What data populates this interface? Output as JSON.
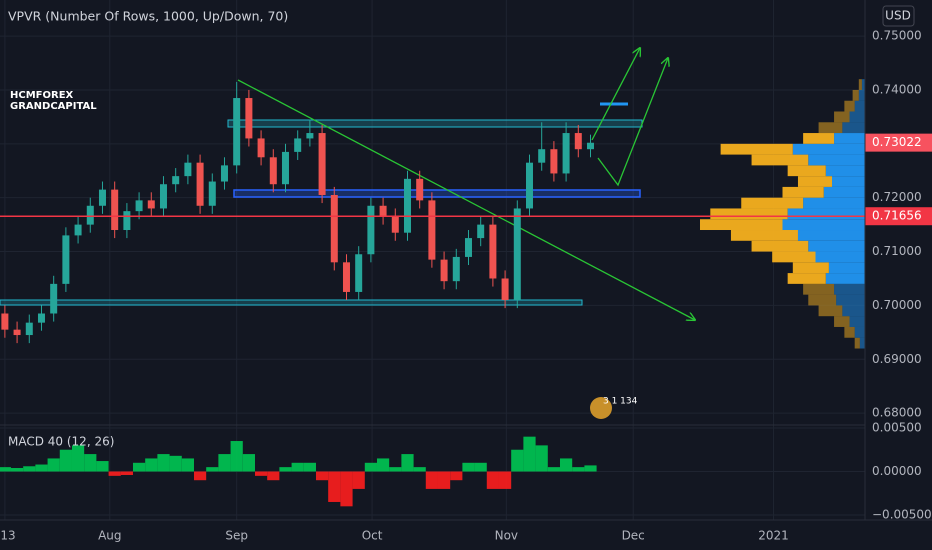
{
  "chart_data": [
    {
      "type": "candlestick",
      "title": "VPVR (Number Of Rows, 1000, Up/Down, 70)",
      "watermark": [
        "HCMFOREX",
        "GRANDCAPITAL"
      ],
      "currency": "USD",
      "badge": "3 1 134",
      "xlim": [
        -0.4,
        70.5
      ],
      "xticks": [
        {
          "value": 0,
          "label": "13"
        },
        {
          "value": 8.6,
          "label": "Aug"
        },
        {
          "value": 19,
          "label": "Sep"
        },
        {
          "value": 30.1,
          "label": "Oct"
        },
        {
          "value": 41.1,
          "label": "Nov"
        },
        {
          "value": 51.5,
          "label": "Dec"
        },
        {
          "value": 63,
          "label": "2021"
        }
      ],
      "ylim": [
        0.6778,
        0.7567
      ],
      "yticks": [
        {
          "value": 0.75,
          "label": "0.75000"
        },
        {
          "value": 0.74,
          "label": "0.74000"
        },
        {
          "value": 0.73,
          "label": "0.73000"
        },
        {
          "value": 0.72,
          "label": "0.72000"
        },
        {
          "value": 0.71,
          "label": "0.71000"
        },
        {
          "value": 0.7,
          "label": "0.70000"
        },
        {
          "value": 0.69,
          "label": "0.69000"
        },
        {
          "value": 0.68,
          "label": "0.68000"
        }
      ],
      "grid": true,
      "up_color": "#26a69a",
      "down_color": "#ef5350",
      "open": [
        0.6985,
        0.6955,
        0.6945,
        0.6968,
        0.6985,
        0.704,
        0.713,
        0.715,
        0.7185,
        0.7215,
        0.714,
        0.7175,
        0.7195,
        0.718,
        0.7225,
        0.724,
        0.7265,
        0.7185,
        0.723,
        0.726,
        0.7385,
        0.731,
        0.7275,
        0.7225,
        0.7285,
        0.731,
        0.732,
        0.7205,
        0.708,
        0.7025,
        0.7095,
        0.7185,
        0.7165,
        0.7135,
        0.7235,
        0.7195,
        0.7085,
        0.7045,
        0.709,
        0.7125,
        0.715,
        0.705,
        0.701,
        0.718,
        0.7265,
        0.729,
        0.7245,
        0.732,
        0.729
      ],
      "high": [
        0.7,
        0.697,
        0.6983,
        0.7,
        0.7055,
        0.7145,
        0.7165,
        0.72,
        0.723,
        0.723,
        0.719,
        0.721,
        0.721,
        0.724,
        0.7255,
        0.728,
        0.728,
        0.7245,
        0.7275,
        0.7415,
        0.74,
        0.7325,
        0.729,
        0.73,
        0.7325,
        0.7345,
        0.7335,
        0.722,
        0.7095,
        0.711,
        0.72,
        0.72,
        0.718,
        0.725,
        0.725,
        0.721,
        0.71,
        0.7105,
        0.714,
        0.7165,
        0.7165,
        0.7065,
        0.7195,
        0.728,
        0.734,
        0.7305,
        0.734,
        0.7335,
        0.7317
      ],
      "low": [
        0.694,
        0.693,
        0.693,
        0.6953,
        0.697,
        0.7025,
        0.7115,
        0.7135,
        0.717,
        0.7125,
        0.7125,
        0.716,
        0.7165,
        0.7165,
        0.721,
        0.7225,
        0.717,
        0.717,
        0.7215,
        0.7245,
        0.7295,
        0.726,
        0.721,
        0.721,
        0.727,
        0.7295,
        0.719,
        0.7065,
        0.701,
        0.701,
        0.708,
        0.715,
        0.712,
        0.712,
        0.718,
        0.707,
        0.703,
        0.703,
        0.7075,
        0.711,
        0.7035,
        0.6995,
        0.6995,
        0.7165,
        0.725,
        0.723,
        0.723,
        0.7275,
        0.7275
      ],
      "close": [
        0.6955,
        0.6945,
        0.6968,
        0.6985,
        0.704,
        0.713,
        0.715,
        0.7185,
        0.7215,
        0.714,
        0.7175,
        0.7195,
        0.718,
        0.7225,
        0.724,
        0.7265,
        0.7185,
        0.723,
        0.726,
        0.7385,
        0.731,
        0.7275,
        0.7225,
        0.7285,
        0.731,
        0.732,
        0.7205,
        0.708,
        0.7025,
        0.7095,
        0.7185,
        0.7165,
        0.7135,
        0.7235,
        0.7195,
        0.7085,
        0.7045,
        0.709,
        0.7125,
        0.715,
        0.705,
        0.701,
        0.718,
        0.7265,
        0.729,
        0.7245,
        0.732,
        0.729,
        0.7302
      ],
      "price_labels": [
        {
          "value": 0.73022,
          "label": "0.73022",
          "color": "#f7525f"
        },
        {
          "value": 0.71656,
          "label": "0.71656",
          "color": "#f23645"
        }
      ],
      "volume_profile": {
        "price": [
          0.693,
          0.695,
          0.697,
          0.699,
          0.701,
          0.703,
          0.705,
          0.707,
          0.709,
          0.711,
          0.713,
          0.715,
          0.717,
          0.719,
          0.721,
          0.723,
          0.725,
          0.727,
          0.729,
          0.731,
          0.733,
          0.735,
          0.737,
          0.739,
          0.741
        ],
        "up": [
          5,
          10,
          15,
          22,
          28,
          30,
          38,
          35,
          48,
          55,
          65,
          80,
          75,
          60,
          40,
          32,
          38,
          55,
          70,
          30,
          22,
          15,
          10,
          6,
          3
        ],
        "down": [
          5,
          10,
          15,
          23,
          27,
          30,
          37,
          35,
          42,
          55,
          65,
          80,
          75,
          60,
          40,
          33,
          37,
          55,
          70,
          30,
          23,
          15,
          10,
          6,
          3
        ],
        "up_color": "#2196f3",
        "down_color": "#f5b01f",
        "value_area": [
          0.705,
          0.731
        ]
      }
    },
    {
      "type": "histogram",
      "title": "MACD 40 (12, 26)",
      "ylim": [
        -0.00557,
        0.00534
      ],
      "yticks": [
        {
          "value": 0.005,
          "label": "0.00500"
        },
        {
          "value": 0,
          "label": "0.00000"
        },
        {
          "value": -0.005,
          "label": "−0.00500"
        }
      ],
      "up_color": "#00c853",
      "down_color": "#ff1e1e",
      "values": [
        0.0005,
        0.0004,
        0.0006,
        0.0008,
        0.0015,
        0.0025,
        0.003,
        0.002,
        0.0012,
        -0.0005,
        -0.0004,
        0.001,
        0.0015,
        0.002,
        0.0018,
        0.0015,
        -0.001,
        0.0005,
        0.002,
        0.0035,
        0.002,
        -0.0005,
        -0.001,
        0.0005,
        0.001,
        0.001,
        -0.001,
        -0.0035,
        -0.004,
        -0.002,
        0.001,
        0.0015,
        0.0005,
        0.002,
        0.0005,
        -0.002,
        -0.002,
        -0.001,
        0.001,
        0.001,
        -0.002,
        -0.002,
        0.0025,
        0.004,
        0.003,
        0.0005,
        0.0015,
        0.0005,
        0.0007
      ]
    }
  ]
}
